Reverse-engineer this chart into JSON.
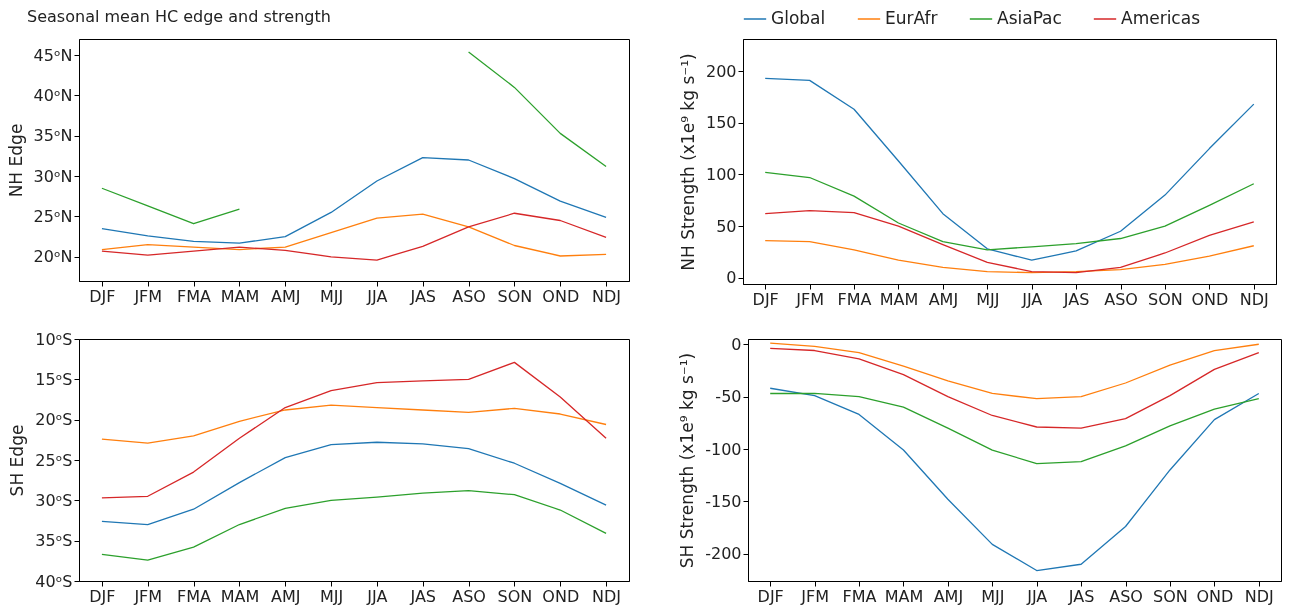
{
  "chart_data": [
    {
      "type": "line",
      "title": "Seasonal mean HC edge and strength",
      "ylabel": "NH Edge",
      "categories": [
        "DJF",
        "JFM",
        "FMA",
        "MAM",
        "AMJ",
        "MJJ",
        "JJA",
        "JAS",
        "ASO",
        "SON",
        "OND",
        "NDJ"
      ],
      "series": [
        {
          "color": "#1f77b4",
          "values": [
            23.5,
            22.6,
            21.9,
            21.7,
            22.5,
            25.5,
            29.4,
            32.3,
            32.0,
            29.7,
            26.9,
            24.9
          ]
        },
        {
          "color": "#ff7f0e",
          "values": [
            20.9,
            21.5,
            21.2,
            20.9,
            21.2,
            23.0,
            24.8,
            25.3,
            23.7,
            21.4,
            20.1,
            20.3
          ]
        },
        {
          "color": "#2ca02c",
          "values": [
            28.5,
            26.3,
            24.1,
            25.9,
            null,
            null,
            null,
            null,
            45.4,
            41.0,
            35.3,
            31.2
          ]
        },
        {
          "color": "#d62728",
          "values": [
            20.7,
            20.2,
            20.7,
            21.2,
            20.8,
            20.0,
            19.6,
            21.3,
            23.7,
            25.4,
            24.5,
            22.4
          ]
        }
      ],
      "ylim": [
        17,
        47
      ],
      "yticks": [
        {
          "value": 20,
          "label": "20ᵒN"
        },
        {
          "value": 25,
          "label": "25ᵒN"
        },
        {
          "value": 30,
          "label": "30ᵒN"
        },
        {
          "value": 35,
          "label": "35ᵒN"
        },
        {
          "value": 40,
          "label": "40ᵒN"
        },
        {
          "value": 45,
          "label": "45ᵒN"
        }
      ]
    },
    {
      "type": "line",
      "ylabel": "NH Strength (x1e⁹ kg s⁻¹)",
      "legend": "top",
      "categories": [
        "DJF",
        "JFM",
        "FMA",
        "MAM",
        "AMJ",
        "MJJ",
        "JJA",
        "JAS",
        "ASO",
        "SON",
        "OND",
        "NDJ"
      ],
      "series": [
        {
          "name": "Global",
          "color": "#1f77b4",
          "values": [
            193,
            191,
            163,
            113,
            62,
            28,
            17,
            26,
            45,
            80,
            125,
            168
          ]
        },
        {
          "name": "EurAfr",
          "color": "#ff7f0e",
          "values": [
            36,
            35,
            27,
            17,
            10,
            6,
            5,
            6,
            8,
            13,
            21,
            31
          ]
        },
        {
          "name": "AsiaPac",
          "color": "#2ca02c",
          "values": [
            102,
            97,
            79,
            53,
            35,
            27,
            30,
            33,
            38,
            50,
            70,
            91
          ]
        },
        {
          "name": "Americas",
          "color": "#d62728",
          "values": [
            62,
            65,
            63,
            50,
            32,
            15,
            6,
            5,
            10,
            24,
            41,
            54
          ]
        }
      ],
      "ylim": [
        -6,
        231
      ],
      "yticks": [
        0,
        50,
        100,
        150,
        200
      ]
    },
    {
      "type": "line",
      "ylabel": "SH Edge",
      "categories": [
        "DJF",
        "JFM",
        "FMA",
        "MAM",
        "AMJ",
        "MJJ",
        "JJA",
        "JAS",
        "ASO",
        "SON",
        "OND",
        "NDJ"
      ],
      "series": [
        {
          "color": "#1f77b4",
          "values": [
            -32.6,
            -33.0,
            -31.1,
            -27.8,
            -24.7,
            -23.1,
            -22.8,
            -23.0,
            -23.6,
            -25.4,
            -27.9,
            -30.6
          ]
        },
        {
          "color": "#ff7f0e",
          "values": [
            -22.4,
            -22.9,
            -22.0,
            -20.2,
            -18.8,
            -18.2,
            -18.5,
            -18.8,
            -19.1,
            -18.6,
            -19.3,
            -20.6
          ]
        },
        {
          "color": "#2ca02c",
          "values": [
            -36.7,
            -37.4,
            -35.8,
            -33.0,
            -31.0,
            -30.0,
            -29.6,
            -29.1,
            -28.8,
            -29.3,
            -31.2,
            -34.1
          ]
        },
        {
          "color": "#d62728",
          "values": [
            -29.7,
            -29.5,
            -26.5,
            -22.3,
            -18.5,
            -16.4,
            -15.4,
            -15.2,
            -15.0,
            -12.9,
            -17.2,
            -22.3
          ]
        }
      ],
      "ylim": [
        -40,
        -10
      ],
      "yticks": [
        {
          "value": -40,
          "label": "40ᵒS"
        },
        {
          "value": -35,
          "label": "35ᵒS"
        },
        {
          "value": -30,
          "label": "30ᵒS"
        },
        {
          "value": -25,
          "label": "25ᵒS"
        },
        {
          "value": -20,
          "label": "20ᵒS"
        },
        {
          "value": -15,
          "label": "15ᵒS"
        },
        {
          "value": -10,
          "label": "10ᵒS"
        }
      ]
    },
    {
      "type": "line",
      "ylabel": "SH Strength (x1e⁹ kg s⁻¹)",
      "categories": [
        "DJF",
        "JFM",
        "FMA",
        "MAM",
        "AMJ",
        "MJJ",
        "JJA",
        "JAS",
        "ASO",
        "SON",
        "OND",
        "NDJ"
      ],
      "series": [
        {
          "color": "#1f77b4",
          "values": [
            -42,
            -49,
            -67,
            -101,
            -148,
            -191,
            -216,
            -210,
            -174,
            -120,
            -72,
            -47
          ]
        },
        {
          "color": "#ff7f0e",
          "values": [
            1,
            -2,
            -8,
            -21,
            -35,
            -47,
            -52,
            -50,
            -37,
            -20,
            -6,
            0
          ]
        },
        {
          "color": "#2ca02c",
          "values": [
            -47,
            -47,
            -50,
            -60,
            -80,
            -101,
            -114,
            -112,
            -97,
            -78,
            -62,
            -52
          ]
        },
        {
          "color": "#d62728",
          "values": [
            -4,
            -6,
            -14,
            -29,
            -50,
            -68,
            -79,
            -80,
            -71,
            -49,
            -24,
            -8
          ]
        }
      ],
      "ylim": [
        -226,
        5
      ],
      "yticks": [
        -200,
        -150,
        -100,
        -50,
        0
      ]
    }
  ]
}
